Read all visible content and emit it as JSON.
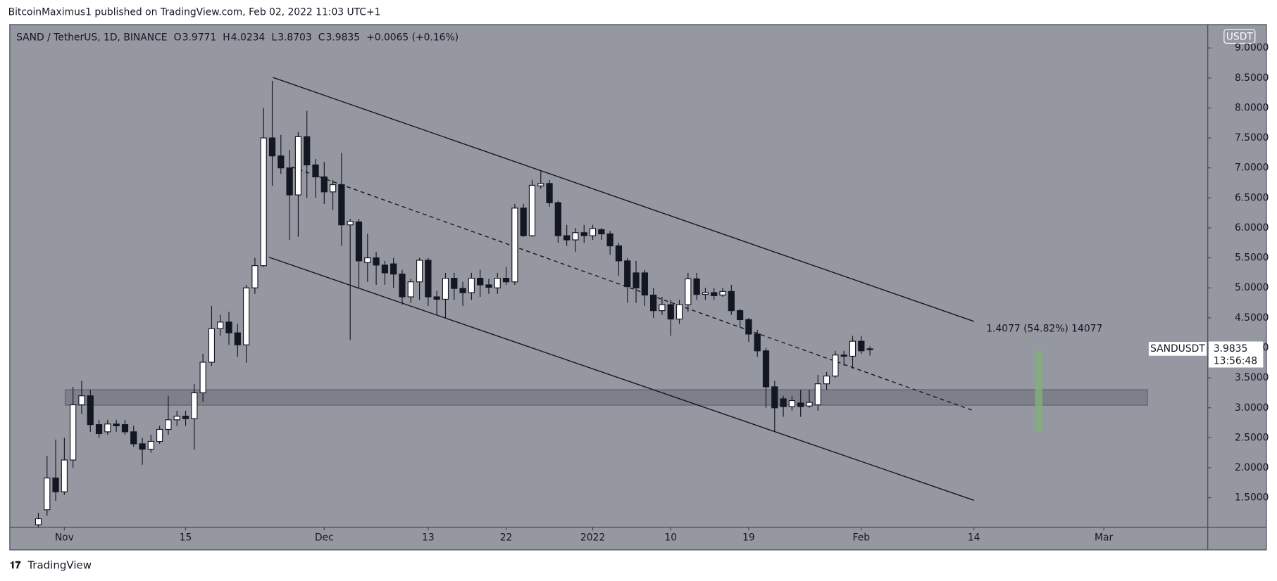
{
  "header": {
    "publisher": "BitcoinMaximus1 published on TradingView.com, Feb 02, 2022 11:03 UTC+1"
  },
  "footer": {
    "brand": "TradingView"
  },
  "chart_data": {
    "type": "candlestick",
    "title": "SAND / TetherUS, 1D, BINANCE",
    "ohlc_labels": [
      "O",
      "H",
      "L",
      "C"
    ],
    "change": "+0.0065 (+0.16%)",
    "symbol": "SANDUSDT",
    "countdown": "13:56:48",
    "currency": "USDT",
    "annotation": "1.4077 (54.82%) 14077",
    "up_color": "#ffffff",
    "down_color": "#131722",
    "xlim": [
      -3.3,
      135.0
    ],
    "xticks": [
      {
        "value": 3,
        "label": "Nov"
      },
      {
        "value": 17,
        "label": "15"
      },
      {
        "value": 33,
        "label": "Dec"
      },
      {
        "value": 45,
        "label": "13"
      },
      {
        "value": 54,
        "label": "22"
      },
      {
        "value": 64,
        "label": "2022"
      },
      {
        "value": 73,
        "label": "10"
      },
      {
        "value": 82,
        "label": "19"
      },
      {
        "value": 95,
        "label": "Feb"
      },
      {
        "value": 108,
        "label": "14"
      },
      {
        "value": 123,
        "label": "Mar"
      }
    ],
    "ylim": [
      1.01,
      9.39
    ],
    "yticks": [
      {
        "value": 1.5,
        "label": "1.5000"
      },
      {
        "value": 2.0,
        "label": "2.0000"
      },
      {
        "value": 2.5,
        "label": "2.5000"
      },
      {
        "value": 3.0,
        "label": "3.0000"
      },
      {
        "value": 3.5,
        "label": "3.5000"
      },
      {
        "value": 4.0,
        "label": "4.0000"
      },
      {
        "value": 4.5,
        "label": "4.5000"
      },
      {
        "value": 5.0,
        "label": "5.0000"
      },
      {
        "value": 5.5,
        "label": "5.5000"
      },
      {
        "value": 6.0,
        "label": "6.0000"
      },
      {
        "value": 6.5,
        "label": "6.5000"
      },
      {
        "value": 7.0,
        "label": "7.0000"
      },
      {
        "value": 7.5,
        "label": "7.5000"
      },
      {
        "value": 8.0,
        "label": "8.0000"
      },
      {
        "value": 8.5,
        "label": "8.5000"
      },
      {
        "value": 9.0,
        "label": "9.0000"
      }
    ],
    "open": [
      1.05,
      1.3,
      1.83,
      1.6,
      2.13,
      3.05,
      3.2,
      2.72,
      2.6,
      2.73,
      2.72,
      2.6,
      2.4,
      2.31,
      2.44,
      2.64,
      2.8,
      2.86,
      2.82,
      3.25,
      3.76,
      4.32,
      4.43,
      4.25,
      4.05,
      5.0,
      5.37,
      7.5,
      7.2,
      7.0,
      6.55,
      7.52,
      7.05,
      6.85,
      6.6,
      6.72,
      6.05,
      6.1,
      5.42,
      5.5,
      5.38,
      5.4,
      5.23,
      4.85,
      5.1,
      5.46,
      4.85,
      4.81,
      5.16,
      4.99,
      4.92,
      5.16,
      5.05,
      5.0,
      5.16,
      5.1,
      6.33,
      5.87,
      6.7,
      6.74,
      6.42,
      5.87,
      5.8,
      5.92,
      5.87,
      5.97,
      5.9,
      5.7,
      5.45,
      5.25,
      5.25,
      4.88,
      4.62,
      4.72,
      4.48,
      4.72,
      5.15,
      4.89,
      4.92,
      4.88,
      4.94,
      4.62,
      4.47,
      4.23,
      3.95,
      3.35,
      3.15,
      3.02,
      3.08,
      3.03,
      3.05,
      3.4,
      3.53,
      3.88,
      3.86,
      4.11,
      3.9771
    ],
    "high": [
      1.25,
      2.2,
      2.47,
      2.5,
      3.35,
      3.45,
      3.3,
      2.8,
      2.8,
      2.8,
      2.8,
      2.7,
      2.5,
      2.55,
      2.7,
      3.2,
      2.95,
      2.95,
      3.4,
      3.9,
      4.7,
      4.55,
      4.6,
      4.4,
      5.05,
      5.5,
      8.0,
      8.45,
      7.55,
      7.3,
      7.6,
      7.95,
      7.15,
      7.1,
      6.8,
      7.25,
      6.15,
      6.15,
      5.9,
      5.6,
      5.45,
      5.5,
      5.3,
      5.15,
      5.5,
      5.5,
      4.95,
      5.25,
      5.25,
      5.1,
      5.25,
      5.3,
      5.15,
      5.25,
      5.35,
      6.4,
      6.4,
      6.8,
      6.95,
      6.8,
      6.45,
      6.05,
      6.0,
      6.05,
      6.05,
      6.0,
      5.95,
      5.75,
      5.5,
      5.45,
      5.3,
      5.0,
      4.85,
      4.8,
      4.8,
      5.25,
      5.25,
      5.0,
      5.0,
      5.0,
      5.05,
      4.65,
      4.5,
      4.3,
      4.0,
      3.45,
      3.2,
      3.2,
      3.3,
      3.3,
      3.55,
      3.6,
      3.95,
      3.95,
      4.2,
      4.2,
      4.0234
    ],
    "low": [
      1.0,
      1.2,
      1.45,
      1.55,
      2.0,
      2.9,
      2.6,
      2.5,
      2.55,
      2.6,
      2.55,
      2.35,
      2.05,
      2.25,
      2.4,
      2.55,
      2.7,
      2.7,
      2.3,
      3.1,
      3.7,
      4.2,
      4.05,
      3.85,
      3.75,
      4.9,
      5.35,
      6.7,
      6.9,
      5.8,
      5.85,
      6.5,
      6.5,
      6.4,
      6.3,
      5.7,
      4.13,
      5.0,
      5.1,
      5.05,
      5.05,
      5.0,
      4.72,
      4.75,
      4.8,
      4.7,
      4.55,
      4.5,
      4.8,
      4.7,
      4.8,
      4.85,
      4.9,
      4.9,
      5.05,
      5.05,
      5.85,
      5.85,
      6.65,
      6.35,
      5.75,
      5.7,
      5.6,
      5.75,
      5.8,
      5.8,
      5.55,
      5.2,
      4.75,
      4.75,
      4.7,
      4.5,
      4.55,
      4.2,
      4.4,
      4.6,
      4.8,
      4.8,
      4.8,
      4.85,
      4.55,
      4.35,
      4.1,
      3.85,
      3.0,
      2.6,
      2.85,
      2.95,
      2.85,
      3.0,
      2.95,
      3.3,
      3.5,
      3.7,
      3.65,
      3.9,
      3.8703
    ],
    "close": [
      1.15,
      1.83,
      1.6,
      2.13,
      3.05,
      3.2,
      2.72,
      2.57,
      2.73,
      2.7,
      2.6,
      2.4,
      2.31,
      2.44,
      2.64,
      2.8,
      2.86,
      2.82,
      3.25,
      3.76,
      4.32,
      4.43,
      4.25,
      4.05,
      5.0,
      5.37,
      7.5,
      7.2,
      7.0,
      6.55,
      7.52,
      7.05,
      6.85,
      6.6,
      6.72,
      6.05,
      6.11,
      5.45,
      5.5,
      5.38,
      5.25,
      5.23,
      4.85,
      5.1,
      5.46,
      4.85,
      4.81,
      5.16,
      4.99,
      4.92,
      5.16,
      5.05,
      5.01,
      5.16,
      5.1,
      6.33,
      5.87,
      6.71,
      6.74,
      6.42,
      5.87,
      5.8,
      5.92,
      5.87,
      5.99,
      5.9,
      5.7,
      5.45,
      5.02,
      5.0,
      4.88,
      4.62,
      4.72,
      4.48,
      4.72,
      5.15,
      4.89,
      4.92,
      4.87,
      4.94,
      4.62,
      4.47,
      4.23,
      3.95,
      3.35,
      3.0,
      3.02,
      3.12,
      3.02,
      3.09,
      3.4,
      3.53,
      3.88,
      3.86,
      4.11,
      3.95,
      3.9835
    ]
  }
}
